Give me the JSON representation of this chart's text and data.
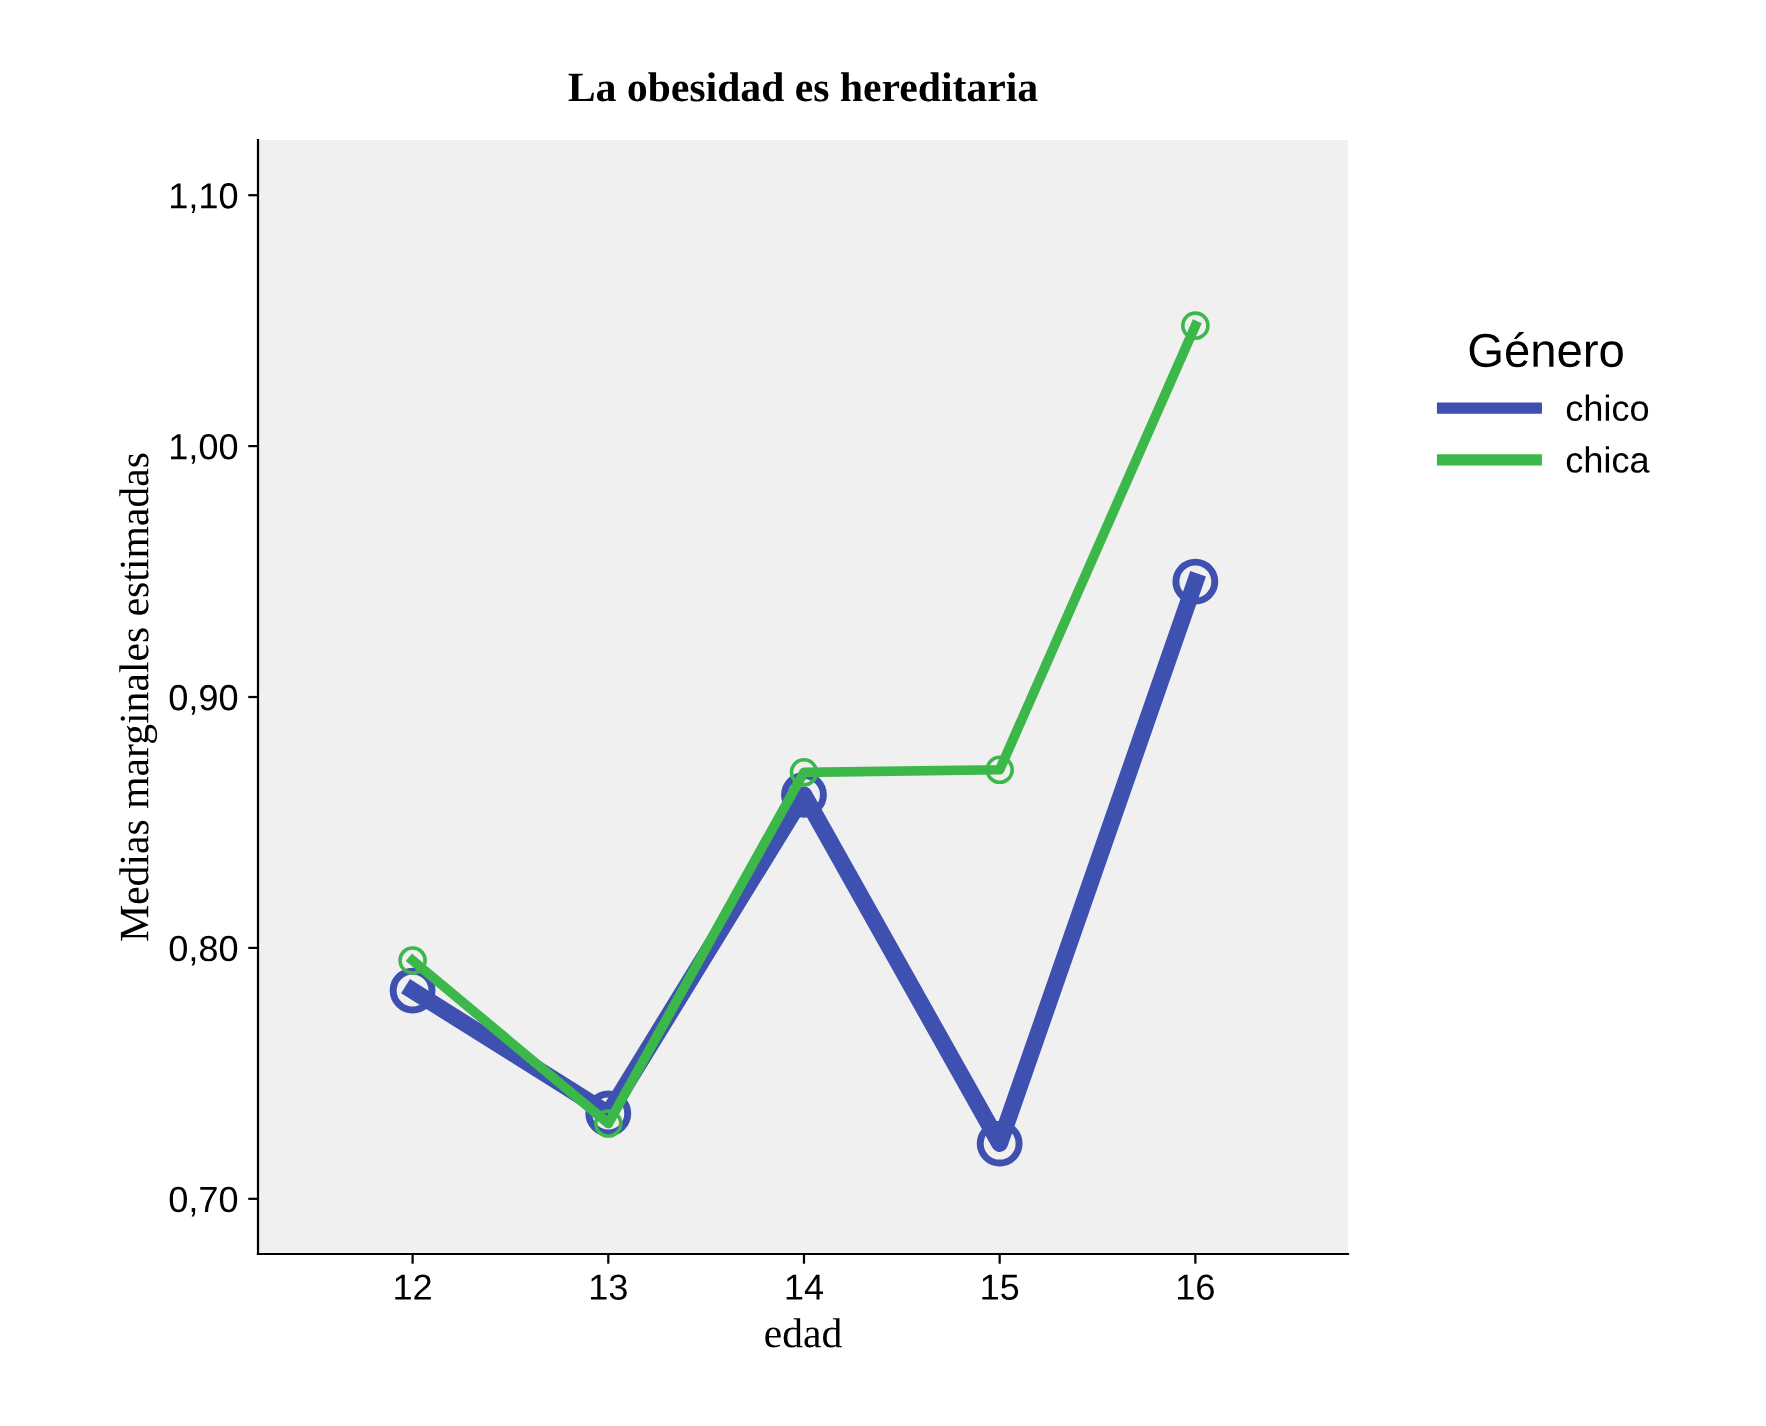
{
  "chart_data": {
    "type": "line",
    "title": "La obesidad es hereditaria",
    "xlabel": "edad",
    "ylabel": "Medias marginales estimadas",
    "legend_title": "Género",
    "x": [
      12,
      13,
      14,
      15,
      16
    ],
    "series": [
      {
        "name": "chico",
        "color": "#3f51b0",
        "values": [
          0.783,
          0.734,
          0.861,
          0.722,
          0.946
        ]
      },
      {
        "name": "chica",
        "color": "#3cb84a",
        "values": [
          0.795,
          0.73,
          0.87,
          0.871,
          1.048
        ]
      }
    ],
    "xlim": [
      11.21,
      16.78
    ],
    "xticks": [
      12,
      13,
      14,
      15,
      16
    ],
    "ylim": [
      0.678,
      1.122
    ],
    "yticks": [
      {
        "value": 0.7,
        "label": "0,70"
      },
      {
        "value": 0.8,
        "label": "0,80"
      },
      {
        "value": 0.9,
        "label": "0,90"
      },
      {
        "value": 1.0,
        "label": "1,00"
      },
      {
        "value": 1.1,
        "label": "1,10"
      }
    ],
    "marker": "circle",
    "line_style": "solid",
    "legend": "right",
    "grid": false
  }
}
